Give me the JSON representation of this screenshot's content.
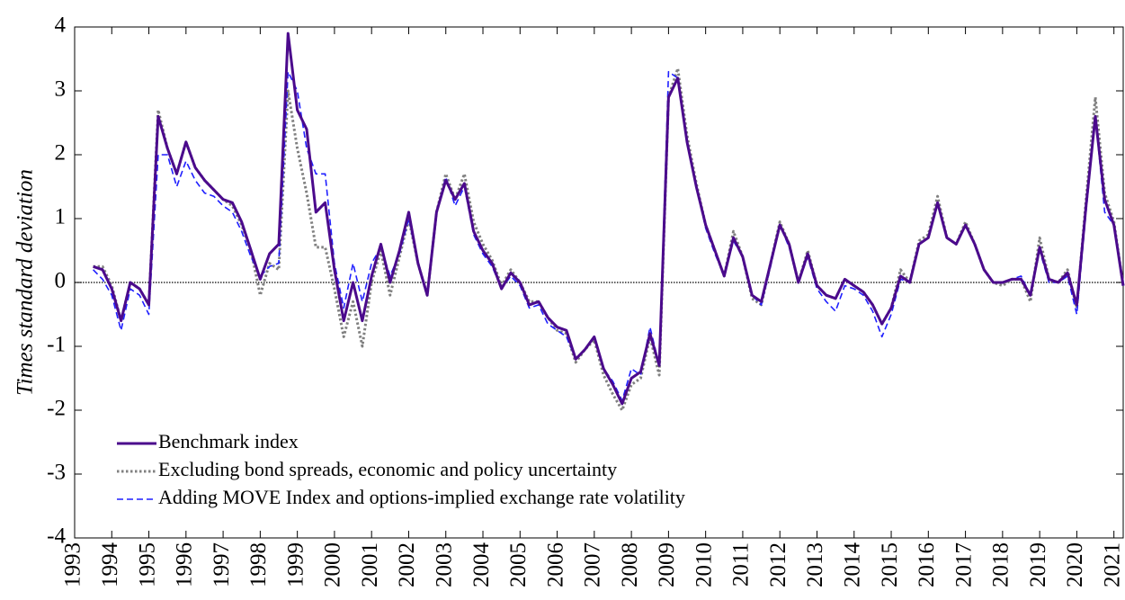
{
  "chart_data": {
    "type": "line",
    "ylabel": "Times standard deviation",
    "x": [
      1993.5,
      1993.75,
      1994,
      1994.25,
      1994.5,
      1994.75,
      1995,
      1995.25,
      1995.5,
      1995.75,
      1996,
      1996.25,
      1996.5,
      1996.75,
      1997,
      1997.25,
      1997.5,
      1997.75,
      1998,
      1998.25,
      1998.5,
      1998.75,
      1999,
      1999.25,
      1999.5,
      1999.75,
      2000,
      2000.25,
      2000.5,
      2000.75,
      2001,
      2001.25,
      2001.5,
      2001.75,
      2002,
      2002.25,
      2002.5,
      2002.75,
      2003,
      2003.25,
      2003.5,
      2003.75,
      2004,
      2004.25,
      2004.5,
      2004.75,
      2005,
      2005.25,
      2005.5,
      2005.75,
      2006,
      2006.25,
      2006.5,
      2006.75,
      2007,
      2007.25,
      2007.5,
      2007.75,
      2008,
      2008.25,
      2008.5,
      2008.75,
      2009,
      2009.25,
      2009.5,
      2009.75,
      2010,
      2010.25,
      2010.5,
      2010.75,
      2011,
      2011.25,
      2011.5,
      2011.75,
      2012,
      2012.25,
      2012.5,
      2012.75,
      2013,
      2013.25,
      2013.5,
      2013.75,
      2014,
      2014.25,
      2014.5,
      2014.75,
      2015,
      2015.25,
      2015.5,
      2015.75,
      2016,
      2016.25,
      2016.5,
      2016.75,
      2017,
      2017.25,
      2017.5,
      2017.75,
      2018,
      2018.25,
      2018.5,
      2018.75,
      2019,
      2019.25,
      2019.5,
      2019.75,
      2020,
      2020.25,
      2020.5,
      2020.75,
      2021,
      2021.25
    ],
    "series": [
      {
        "name": "Benchmark index",
        "color": "#4b0a8c",
        "style": "solid",
        "width": 3,
        "values": [
          0.25,
          0.2,
          -0.1,
          -0.6,
          0.0,
          -0.1,
          -0.35,
          2.6,
          2.1,
          1.7,
          2.2,
          1.8,
          1.6,
          1.45,
          1.3,
          1.25,
          0.95,
          0.5,
          0.05,
          0.45,
          0.6,
          3.9,
          2.7,
          2.4,
          1.1,
          1.25,
          0.2,
          -0.6,
          0.0,
          -0.6,
          0.1,
          0.6,
          0.0,
          0.5,
          1.1,
          0.3,
          -0.2,
          1.1,
          1.6,
          1.3,
          1.55,
          0.8,
          0.5,
          0.3,
          -0.1,
          0.15,
          0.0,
          -0.35,
          -0.3,
          -0.55,
          -0.7,
          -0.75,
          -1.2,
          -1.05,
          -0.85,
          -1.35,
          -1.6,
          -1.9,
          -1.5,
          -1.4,
          -0.8,
          -1.3,
          2.9,
          3.2,
          2.2,
          1.5,
          0.9,
          0.5,
          0.1,
          0.7,
          0.4,
          -0.2,
          -0.3,
          0.3,
          0.9,
          0.6,
          0.0,
          0.45,
          -0.05,
          -0.2,
          -0.25,
          0.05,
          -0.05,
          -0.15,
          -0.35,
          -0.65,
          -0.4,
          0.1,
          0.0,
          0.6,
          0.7,
          1.25,
          0.7,
          0.6,
          0.9,
          0.6,
          0.2,
          0.0,
          0.0,
          0.05,
          0.05,
          -0.2,
          0.55,
          0.05,
          0.0,
          0.15,
          -0.35,
          1.2,
          2.6,
          1.3,
          0.9,
          -0.05
        ]
      },
      {
        "name": "Excluding bond spreads, economic and policy uncertainty",
        "color": "#808080",
        "style": "dotted",
        "width": 3,
        "values": [
          0.25,
          0.25,
          -0.05,
          -0.6,
          0.0,
          -0.1,
          -0.35,
          2.7,
          2.1,
          1.7,
          2.2,
          1.8,
          1.6,
          1.45,
          1.3,
          1.2,
          0.9,
          0.5,
          -0.2,
          0.3,
          0.2,
          3.0,
          2.1,
          1.4,
          0.55,
          0.55,
          -0.1,
          -0.85,
          -0.3,
          -1.0,
          0.0,
          0.5,
          -0.2,
          0.4,
          1.0,
          0.3,
          -0.2,
          1.1,
          1.7,
          1.3,
          1.7,
          0.95,
          0.6,
          0.35,
          -0.05,
          0.2,
          0.0,
          -0.3,
          -0.3,
          -0.55,
          -0.75,
          -0.8,
          -1.25,
          -1.05,
          -0.9,
          -1.45,
          -1.75,
          -2.0,
          -1.6,
          -1.5,
          -0.85,
          -1.45,
          2.9,
          3.35,
          2.3,
          1.55,
          0.9,
          0.5,
          0.1,
          0.8,
          0.4,
          -0.25,
          -0.35,
          0.3,
          0.95,
          0.6,
          0.0,
          0.5,
          -0.05,
          -0.2,
          -0.25,
          0.05,
          -0.05,
          -0.15,
          -0.35,
          -0.65,
          -0.4,
          0.2,
          0.0,
          0.65,
          0.75,
          1.35,
          0.7,
          0.6,
          0.95,
          0.6,
          0.2,
          0.0,
          -0.05,
          0.05,
          0.05,
          -0.3,
          0.7,
          0.05,
          0.0,
          0.2,
          -0.4,
          1.3,
          2.9,
          1.4,
          0.95,
          -0.05
        ]
      },
      {
        "name": "Adding MOVE Index and options-implied exchange rate volatility",
        "color": "#1f1fff",
        "style": "dashed",
        "width": 1.6,
        "values": [
          0.2,
          0.05,
          -0.2,
          -0.75,
          -0.1,
          -0.2,
          -0.5,
          2.0,
          2.0,
          1.5,
          1.9,
          1.6,
          1.4,
          1.35,
          1.2,
          1.1,
          0.8,
          0.4,
          0.1,
          0.25,
          0.3,
          3.3,
          3.0,
          2.1,
          1.7,
          1.7,
          0.3,
          -0.4,
          0.3,
          -0.3,
          0.3,
          0.55,
          0.1,
          0.45,
          1.0,
          0.3,
          -0.2,
          1.1,
          1.65,
          1.2,
          1.5,
          0.75,
          0.45,
          0.25,
          -0.1,
          0.1,
          -0.05,
          -0.4,
          -0.35,
          -0.65,
          -0.75,
          -0.85,
          -1.2,
          -1.05,
          -0.85,
          -1.35,
          -1.55,
          -1.85,
          -1.35,
          -1.45,
          -0.7,
          -1.3,
          3.3,
          3.2,
          2.2,
          1.5,
          0.85,
          0.45,
          0.1,
          0.65,
          0.4,
          -0.2,
          -0.35,
          0.25,
          0.9,
          0.55,
          0.0,
          0.4,
          -0.1,
          -0.3,
          -0.45,
          -0.05,
          -0.1,
          -0.2,
          -0.45,
          -0.85,
          -0.5,
          0.05,
          0.0,
          0.6,
          0.7,
          1.25,
          0.7,
          0.6,
          0.9,
          0.6,
          0.2,
          0.0,
          0.0,
          0.05,
          0.1,
          -0.2,
          0.5,
          0.0,
          0.0,
          0.1,
          -0.5,
          1.1,
          2.6,
          1.1,
          0.9,
          -0.05
        ]
      }
    ],
    "reference_line": 0,
    "xlim": [
      1993,
      2021.25
    ],
    "xticks": [
      1993,
      1994,
      1995,
      1996,
      1997,
      1998,
      1999,
      2000,
      2001,
      2002,
      2003,
      2004,
      2005,
      2006,
      2007,
      2008,
      2009,
      2010,
      2011,
      2012,
      2013,
      2014,
      2015,
      2016,
      2017,
      2018,
      2019,
      2020,
      2021
    ],
    "ylim": [
      -4,
      4
    ],
    "yticks": [
      -4,
      -3,
      -2,
      -1,
      0,
      1,
      2,
      3,
      4
    ],
    "legend": "lower left"
  }
}
